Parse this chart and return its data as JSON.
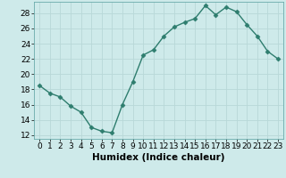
{
  "x": [
    0,
    1,
    2,
    3,
    4,
    5,
    6,
    7,
    8,
    9,
    10,
    11,
    12,
    13,
    14,
    15,
    16,
    17,
    18,
    19,
    20,
    21,
    22,
    23
  ],
  "y": [
    18.5,
    17.5,
    17.0,
    15.8,
    15.0,
    13.0,
    12.5,
    12.3,
    16.0,
    19.0,
    22.5,
    23.2,
    25.0,
    26.2,
    26.8,
    27.3,
    29.0,
    27.8,
    28.8,
    28.2,
    26.5,
    25.0,
    23.0,
    22.0
  ],
  "line_color": "#2e7d6e",
  "marker": "D",
  "marker_size": 2.5,
  "bg_color": "#ceeaea",
  "grid_color": "#b8d8d8",
  "xlabel": "Humidex (Indice chaleur)",
  "xlim": [
    -0.5,
    23.5
  ],
  "ylim": [
    11.5,
    29.5
  ],
  "xticks": [
    0,
    1,
    2,
    3,
    4,
    5,
    6,
    7,
    8,
    9,
    10,
    11,
    12,
    13,
    14,
    15,
    16,
    17,
    18,
    19,
    20,
    21,
    22,
    23
  ],
  "yticks": [
    12,
    14,
    16,
    18,
    20,
    22,
    24,
    26,
    28
  ],
  "tick_fontsize": 6.5,
  "xlabel_fontsize": 7.5,
  "line_width": 1.0
}
